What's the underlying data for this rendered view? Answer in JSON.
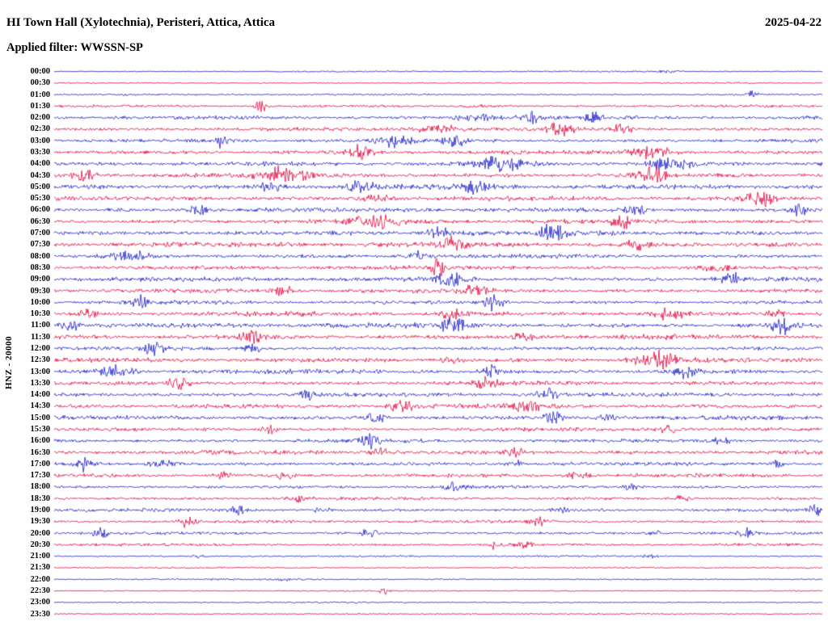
{
  "header": {
    "title": "HI Town Hall (Xylotechnia), Peristeri, Attica, Attica",
    "date": "2025-04-22",
    "filter_line": "Applied filter: WWSSN-SP"
  },
  "y_axis_label": "HNZ - 20000",
  "colors": {
    "blue": "#1a1acb",
    "red": "#e4003c",
    "text": "#000000",
    "background": "#ffffff"
  },
  "chart_data": {
    "type": "line",
    "subtype": "helicorder-seismogram",
    "title": "HI Town Hall (Xylotechnia), Peristeri, Attica, Attica",
    "date": "2025-04-22",
    "station_network": "HI",
    "channel": "HNZ",
    "scale": "20000",
    "filter": "WWSSN-SP",
    "ylabel": "HNZ - 20000",
    "row_interval_minutes": 30,
    "rows_start": "00:00",
    "rows_end": "23:30",
    "legend": "alternating blue/red traces per 30-minute row",
    "rows": [
      {
        "time": "00:00",
        "color": "blue",
        "amp": 0.7,
        "bursts": [
          [
            0.8,
            3,
            0.01
          ]
        ]
      },
      {
        "time": "00:30",
        "color": "red",
        "amp": 0.7,
        "bursts": []
      },
      {
        "time": "01:00",
        "color": "blue",
        "amp": 0.9,
        "bursts": [
          [
            0.91,
            5,
            0.004
          ]
        ]
      },
      {
        "time": "01:30",
        "color": "red",
        "amp": 1.2,
        "bursts": [
          [
            0.27,
            6,
            0.006
          ],
          [
            0.55,
            2,
            0.012
          ]
        ]
      },
      {
        "time": "02:00",
        "color": "blue",
        "amp": 1.8,
        "bursts": [
          [
            0.55,
            3,
            0.02
          ],
          [
            0.62,
            3.5,
            0.01
          ],
          [
            0.7,
            3,
            0.008
          ]
        ]
      },
      {
        "time": "02:30",
        "color": "red",
        "amp": 1.8,
        "bursts": [
          [
            0.5,
            3,
            0.02
          ],
          [
            0.66,
            4,
            0.01
          ],
          [
            0.74,
            4,
            0.008
          ]
        ]
      },
      {
        "time": "03:00",
        "color": "blue",
        "amp": 1.8,
        "bursts": [
          [
            0.22,
            4,
            0.006
          ],
          [
            0.44,
            3,
            0.015
          ],
          [
            0.52,
            3,
            0.01
          ]
        ]
      },
      {
        "time": "03:30",
        "color": "red",
        "amp": 2.0,
        "bursts": [
          [
            0.4,
            4,
            0.01
          ],
          [
            0.78,
            3,
            0.02
          ]
        ]
      },
      {
        "time": "04:00",
        "color": "blue",
        "amp": 2.2,
        "bursts": [
          [
            0.58,
            3,
            0.02
          ],
          [
            0.8,
            3,
            0.02
          ]
        ]
      },
      {
        "time": "04:30",
        "color": "red",
        "amp": 2.2,
        "bursts": [
          [
            0.04,
            3,
            0.01
          ],
          [
            0.3,
            2.5,
            0.02
          ],
          [
            0.78,
            3,
            0.015
          ]
        ]
      },
      {
        "time": "05:00",
        "color": "blue",
        "amp": 2.4,
        "bursts": [
          [
            0.28,
            3,
            0.01
          ],
          [
            0.4,
            3,
            0.01
          ],
          [
            0.55,
            3,
            0.01
          ]
        ]
      },
      {
        "time": "05:30",
        "color": "red",
        "amp": 2.2,
        "bursts": [
          [
            0.42,
            3,
            0.012
          ],
          [
            0.92,
            3.5,
            0.012
          ]
        ]
      },
      {
        "time": "06:00",
        "color": "blue",
        "amp": 2.2,
        "bursts": [
          [
            0.19,
            3,
            0.01
          ],
          [
            0.76,
            3,
            0.012
          ],
          [
            0.97,
            3,
            0.008
          ]
        ]
      },
      {
        "time": "06:30",
        "color": "red",
        "amp": 2.2,
        "bursts": [
          [
            0.42,
            2.5,
            0.02
          ],
          [
            0.74,
            3,
            0.01
          ]
        ]
      },
      {
        "time": "07:00",
        "color": "blue",
        "amp": 2.4,
        "bursts": [
          [
            0.5,
            3,
            0.01
          ],
          [
            0.65,
            3.5,
            0.01
          ]
        ]
      },
      {
        "time": "07:30",
        "color": "red",
        "amp": 2.4,
        "bursts": [
          [
            0.52,
            3,
            0.012
          ],
          [
            0.76,
            3,
            0.012
          ]
        ]
      },
      {
        "time": "08:00",
        "color": "blue",
        "amp": 2.0,
        "bursts": [
          [
            0.1,
            2.5,
            0.02
          ],
          [
            0.47,
            3,
            0.01
          ]
        ]
      },
      {
        "time": "08:30",
        "color": "red",
        "amp": 2.0,
        "bursts": [
          [
            0.5,
            3.5,
            0.008
          ],
          [
            0.86,
            3,
            0.015
          ]
        ]
      },
      {
        "time": "09:00",
        "color": "blue",
        "amp": 2.2,
        "bursts": [
          [
            0.52,
            3.5,
            0.015
          ],
          [
            0.88,
            3,
            0.01
          ]
        ]
      },
      {
        "time": "09:30",
        "color": "red",
        "amp": 2.0,
        "bursts": [
          [
            0.3,
            3,
            0.01
          ],
          [
            0.55,
            3,
            0.01
          ]
        ]
      },
      {
        "time": "10:00",
        "color": "blue",
        "amp": 1.8,
        "bursts": [
          [
            0.11,
            4,
            0.008
          ],
          [
            0.57,
            4.5,
            0.01
          ]
        ]
      },
      {
        "time": "10:30",
        "color": "red",
        "amp": 2.2,
        "bursts": [
          [
            0.04,
            3.5,
            0.008
          ],
          [
            0.52,
            3,
            0.01
          ],
          [
            0.8,
            3,
            0.015
          ],
          [
            0.94,
            3.5,
            0.008
          ]
        ]
      },
      {
        "time": "11:00",
        "color": "blue",
        "amp": 2.4,
        "bursts": [
          [
            0.02,
            4,
            0.008
          ],
          [
            0.52,
            3,
            0.01
          ],
          [
            0.95,
            3.5,
            0.01
          ]
        ]
      },
      {
        "time": "11:30",
        "color": "red",
        "amp": 2.2,
        "bursts": [
          [
            0.26,
            3,
            0.012
          ],
          [
            0.61,
            3,
            0.012
          ]
        ]
      },
      {
        "time": "12:00",
        "color": "blue",
        "amp": 1.8,
        "bursts": [
          [
            0.13,
            3,
            0.008
          ],
          [
            0.26,
            3,
            0.008
          ]
        ]
      },
      {
        "time": "12:30",
        "color": "red",
        "amp": 2.2,
        "bursts": [
          [
            0.52,
            3.5,
            0.008
          ],
          [
            0.78,
            4,
            0.02
          ]
        ]
      },
      {
        "time": "13:00",
        "color": "blue",
        "amp": 2.2,
        "bursts": [
          [
            0.08,
            3,
            0.015
          ],
          [
            0.57,
            3,
            0.01
          ],
          [
            0.82,
            3,
            0.01
          ]
        ]
      },
      {
        "time": "13:30",
        "color": "red",
        "amp": 2.0,
        "bursts": [
          [
            0.16,
            3.5,
            0.01
          ],
          [
            0.56,
            3,
            0.01
          ]
        ]
      },
      {
        "time": "14:00",
        "color": "blue",
        "amp": 2.0,
        "bursts": [
          [
            0.33,
            3,
            0.008
          ],
          [
            0.64,
            3,
            0.01
          ]
        ]
      },
      {
        "time": "14:30",
        "color": "red",
        "amp": 2.2,
        "bursts": [
          [
            0.45,
            3.5,
            0.01
          ],
          [
            0.62,
            3,
            0.012
          ]
        ]
      },
      {
        "time": "15:00",
        "color": "blue",
        "amp": 2.0,
        "bursts": [
          [
            0.42,
            3,
            0.008
          ],
          [
            0.65,
            4,
            0.008
          ],
          [
            0.72,
            3.5,
            0.008
          ]
        ]
      },
      {
        "time": "15:30",
        "color": "red",
        "amp": 1.8,
        "bursts": [
          [
            0.28,
            3.5,
            0.008
          ],
          [
            0.8,
            3,
            0.01
          ]
        ]
      },
      {
        "time": "16:00",
        "color": "blue",
        "amp": 1.8,
        "bursts": [
          [
            0.41,
            3.5,
            0.008
          ],
          [
            0.87,
            3,
            0.008
          ]
        ]
      },
      {
        "time": "16:30",
        "color": "red",
        "amp": 2.0,
        "bursts": [
          [
            0.42,
            3,
            0.01
          ],
          [
            0.6,
            3.5,
            0.008
          ]
        ]
      },
      {
        "time": "17:00",
        "color": "blue",
        "amp": 1.8,
        "bursts": [
          [
            0.04,
            3.5,
            0.008
          ],
          [
            0.14,
            3,
            0.012
          ],
          [
            0.6,
            3,
            0.008
          ],
          [
            0.94,
            3.5,
            0.006
          ]
        ]
      },
      {
        "time": "17:30",
        "color": "red",
        "amp": 1.8,
        "bursts": [
          [
            0.22,
            4,
            0.006
          ],
          [
            0.3,
            3,
            0.008
          ],
          [
            0.68,
            2.5,
            0.01
          ]
        ]
      },
      {
        "time": "18:00",
        "color": "blue",
        "amp": 1.5,
        "bursts": [
          [
            0.52,
            2.5,
            0.01
          ],
          [
            0.75,
            2.5,
            0.008
          ]
        ]
      },
      {
        "time": "18:30",
        "color": "red",
        "amp": 1.5,
        "bursts": [
          [
            0.32,
            3,
            0.008
          ],
          [
            0.82,
            4,
            0.006
          ]
        ]
      },
      {
        "time": "19:00",
        "color": "blue",
        "amp": 1.5,
        "bursts": [
          [
            0.24,
            4,
            0.006
          ],
          [
            0.35,
            3.5,
            0.006
          ],
          [
            0.66,
            2.5,
            0.008
          ],
          [
            0.99,
            4,
            0.005
          ]
        ]
      },
      {
        "time": "19:30",
        "color": "red",
        "amp": 1.5,
        "bursts": [
          [
            0.17,
            3.5,
            0.008
          ],
          [
            0.63,
            3.5,
            0.006
          ]
        ]
      },
      {
        "time": "20:00",
        "color": "blue",
        "amp": 1.4,
        "bursts": [
          [
            0.06,
            4,
            0.006
          ],
          [
            0.41,
            3.5,
            0.006
          ],
          [
            0.78,
            3.5,
            0.006
          ],
          [
            0.9,
            3,
            0.006
          ]
        ]
      },
      {
        "time": "20:30",
        "color": "red",
        "amp": 1.3,
        "bursts": [
          [
            0.575,
            5,
            0.006
          ],
          [
            0.61,
            3,
            0.008
          ]
        ]
      },
      {
        "time": "21:00",
        "color": "blue",
        "amp": 0.9,
        "bursts": [
          [
            0.19,
            3,
            0.006
          ],
          [
            0.78,
            2,
            0.01
          ]
        ]
      },
      {
        "time": "21:30",
        "color": "red",
        "amp": 0.8,
        "bursts": []
      },
      {
        "time": "22:00",
        "color": "blue",
        "amp": 0.8,
        "bursts": [
          [
            0.3,
            1.5,
            0.01
          ]
        ]
      },
      {
        "time": "22:30",
        "color": "red",
        "amp": 0.7,
        "bursts": [
          [
            0.43,
            4,
            0.004
          ]
        ]
      },
      {
        "time": "23:00",
        "color": "blue",
        "amp": 0.7,
        "bursts": []
      },
      {
        "time": "23:30",
        "color": "red",
        "amp": 0.7,
        "bursts": []
      }
    ]
  }
}
